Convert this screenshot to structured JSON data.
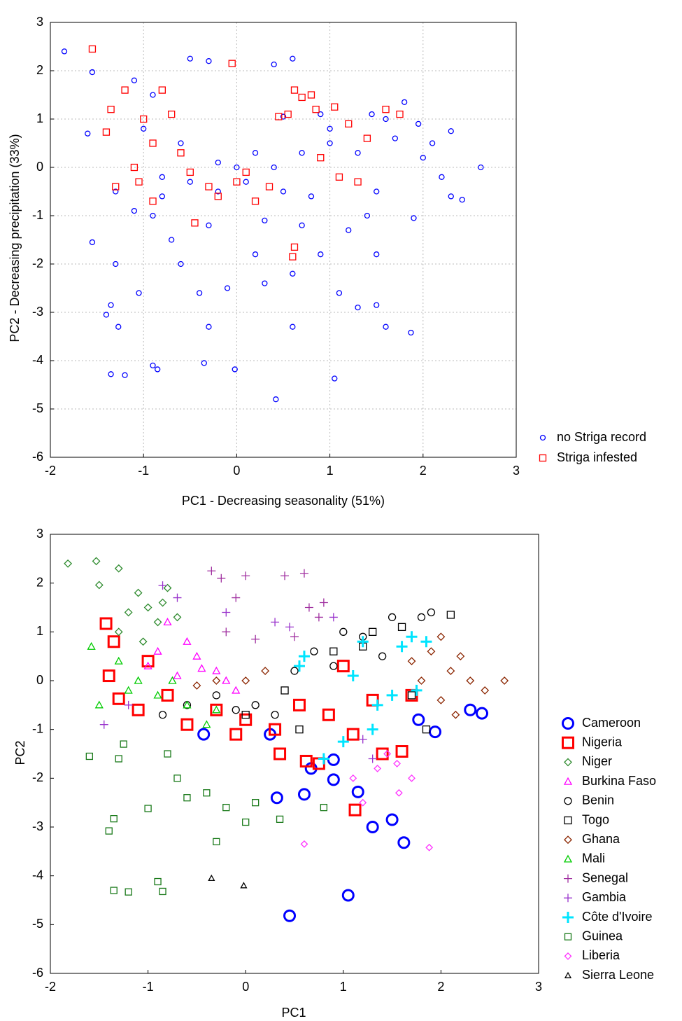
{
  "chart_data": [
    {
      "type": "scatter",
      "x_label": "PC1 - Decreasing seasonality (51%)",
      "y_label": "PC2 - Decreasing precipitation (33%)",
      "xlim": [
        -2,
        3
      ],
      "ylim": [
        -6,
        3
      ],
      "xticks": [
        -2,
        -1,
        0,
        1,
        2,
        3
      ],
      "yticks": [
        -6,
        -5,
        -4,
        -3,
        -2,
        -1,
        0,
        1,
        2,
        3
      ],
      "grid": true,
      "legend": "outside lower right",
      "series": [
        {
          "name": "no Striga record",
          "color": "#0000ff",
          "marker": "circle",
          "size": 7,
          "x": [
            -1.85,
            -1.55,
            -1.6,
            -1.55,
            -1.4,
            -1.35,
            -1.2,
            -0.9,
            -0.85,
            -0.35,
            -0.02,
            0.42,
            1.05,
            -1.27,
            -1.05,
            -0.3,
            0.6,
            1.3,
            1.5,
            1.6,
            1.87,
            2.3,
            2.42,
            2.62,
            2.3,
            1.95,
            1.8,
            1.45,
            1.0,
            0.7,
            0.4,
            0.1,
            -0.2,
            -0.5,
            -0.8,
            -1.1,
            -1.3,
            -1.0,
            -1.1,
            -0.9,
            -0.5,
            -0.3,
            0.4,
            0.6,
            0.9,
            0.5,
            -0.7,
            -0.6,
            -0.4,
            -0.1,
            0.2,
            0.3,
            0.6,
            0.9,
            1.1,
            1.5,
            1.9,
            1.2,
            1.5,
            2.0,
            2.1,
            1.7,
            1.3,
            0.8,
            0.3,
            -0.3,
            -0.9,
            -1.3,
            -1.35,
            -0.8,
            0.0,
            0.5,
            1.0,
            2.2,
            1.6,
            -0.6,
            -0.2,
            0.2,
            0.7,
            1.4
          ],
          "values": [
            2.4,
            1.97,
            0.7,
            -1.55,
            -3.05,
            -4.28,
            -4.3,
            -4.1,
            -4.18,
            -4.05,
            -4.18,
            -4.8,
            -4.37,
            -3.3,
            -2.6,
            -3.3,
            -3.3,
            -2.9,
            -2.85,
            -3.3,
            -3.42,
            -0.6,
            -0.67,
            0,
            0.75,
            0.9,
            1.35,
            1.1,
            0.5,
            0.3,
            0,
            -0.3,
            -0.5,
            -0.3,
            -0.2,
            -0.9,
            -0.5,
            0.8,
            1.8,
            1.5,
            2.25,
            2.2,
            2.13,
            2.25,
            1.1,
            1.05,
            -1.5,
            -2.0,
            -2.6,
            -2.5,
            -1.8,
            -2.4,
            -2.2,
            -1.8,
            -2.6,
            -1.8,
            -1.05,
            -1.3,
            -0.5,
            0.2,
            0.5,
            0.6,
            0.3,
            -0.6,
            -1.1,
            -1.2,
            -1.0,
            -2.0,
            -2.85,
            -0.6,
            0.0,
            -0.5,
            0.8,
            -0.2,
            1.0,
            0.5,
            0.1,
            0.3,
            -1.2,
            -1.0
          ]
        },
        {
          "name": "Striga infested",
          "color": "#ff0000",
          "marker": "square",
          "size": 9,
          "x": [
            -1.55,
            -1.4,
            -1.35,
            -1.3,
            -1.2,
            -1.1,
            -1.0,
            -0.9,
            -0.8,
            -0.7,
            -0.6,
            -0.5,
            -0.3,
            -0.2,
            0.0,
            -0.05,
            0.1,
            0.2,
            0.35,
            0.45,
            0.55,
            0.62,
            0.7,
            0.8,
            0.85,
            0.62,
            0.6,
            1.05,
            1.2,
            1.4,
            1.6,
            1.75,
            1.3,
            -0.9,
            -1.05,
            -0.45,
            0.9,
            1.1
          ],
          "values": [
            2.45,
            0.73,
            1.2,
            -0.4,
            1.6,
            0.0,
            1.0,
            0.5,
            1.6,
            1.1,
            0.3,
            -0.1,
            -0.4,
            -0.6,
            -0.3,
            2.15,
            -0.1,
            -0.7,
            -0.4,
            1.05,
            1.1,
            1.6,
            1.45,
            1.5,
            1.2,
            -1.65,
            -1.85,
            1.25,
            0.9,
            0.6,
            1.2,
            1.1,
            -0.3,
            -0.7,
            -0.3,
            -1.15,
            0.2,
            -0.2
          ]
        }
      ]
    },
    {
      "type": "scatter",
      "x_label": "PC1",
      "y_label": "PC2",
      "xlim": [
        -2,
        3
      ],
      "ylim": [
        -6,
        3
      ],
      "xticks": [
        -2,
        -1,
        0,
        1,
        2,
        3
      ],
      "yticks": [
        -6,
        -5,
        -4,
        -3,
        -2,
        -1,
        0,
        1,
        2,
        3
      ],
      "grid": false,
      "legend": "outside lower right",
      "series": [
        {
          "name": "Cameroon",
          "color": "#0000ff",
          "marker": "circle",
          "size": 15,
          "x": [
            0.45,
            1.05,
            1.62,
            1.3,
            1.5,
            1.15,
            0.9,
            0.32,
            0.6,
            0.67,
            0.9,
            1.77,
            1.94,
            2.3,
            2.42,
            -0.43,
            0.25
          ],
          "values": [
            -4.82,
            -4.4,
            -3.32,
            -3.0,
            -2.85,
            -2.28,
            -2.03,
            -2.4,
            -2.33,
            -1.8,
            -1.62,
            -0.8,
            -1.05,
            -0.6,
            -0.67,
            -1.1,
            -1.1
          ]
        },
        {
          "name": "Nigeria",
          "color": "#ff0000",
          "marker": "square",
          "size": 15,
          "x": [
            -1.43,
            -1.35,
            -1.4,
            -1.3,
            -1.1,
            -1.0,
            -0.8,
            -0.6,
            -0.3,
            -0.1,
            0.0,
            0.3,
            0.35,
            0.55,
            0.62,
            0.85,
            1.0,
            1.1,
            1.12,
            1.3,
            1.4,
            1.6,
            1.7,
            0.75
          ],
          "values": [
            1.17,
            0.8,
            0.1,
            -0.37,
            -0.6,
            0.4,
            -0.3,
            -0.9,
            -0.6,
            -1.1,
            -0.8,
            -1.0,
            -1.5,
            -0.5,
            -1.65,
            -0.7,
            0.3,
            -1.1,
            -2.65,
            -0.4,
            -1.5,
            -1.45,
            -0.3,
            -1.7
          ]
        },
        {
          "name": "Niger",
          "color": "#2e8b2e",
          "marker": "diamond",
          "size": 10,
          "x": [
            -1.82,
            -1.53,
            -1.5,
            -1.3,
            -1.2,
            -1.1,
            -1.0,
            -0.9,
            -0.8,
            -0.7,
            -1.3,
            -1.05,
            -0.85
          ],
          "values": [
            2.4,
            2.45,
            1.96,
            2.3,
            1.4,
            1.8,
            1.5,
            1.2,
            1.9,
            1.3,
            1.0,
            0.8,
            1.6
          ]
        },
        {
          "name": "Burkina Faso",
          "color": "#ff00ff",
          "marker": "triangle",
          "size": 10,
          "x": [
            -1.0,
            -0.8,
            -0.6,
            -0.5,
            -0.3,
            -0.2,
            -0.1,
            -0.7,
            -0.9,
            -0.45
          ],
          "values": [
            0.3,
            1.2,
            0.8,
            0.5,
            0.2,
            0.0,
            -0.2,
            0.1,
            0.6,
            0.25
          ]
        },
        {
          "name": "Benin",
          "color": "#000000",
          "marker": "circle",
          "size": 10,
          "x": [
            -0.85,
            -0.6,
            -0.3,
            -0.1,
            0.1,
            0.3,
            0.5,
            0.7,
            1.0,
            1.2,
            1.5,
            1.8,
            1.9,
            1.4,
            0.9
          ],
          "values": [
            -0.7,
            -0.5,
            -0.3,
            -0.6,
            -0.5,
            -0.7,
            0.2,
            0.6,
            1.0,
            0.9,
            1.3,
            1.3,
            1.4,
            0.5,
            0.3
          ]
        },
        {
          "name": "Togo",
          "color": "#000000",
          "marker": "square",
          "size": 10,
          "x": [
            0.55,
            0.4,
            0.9,
            1.3,
            1.6,
            2.1,
            1.85,
            1.7,
            1.2,
            0.0
          ],
          "values": [
            -1.0,
            -0.2,
            0.6,
            1.0,
            1.1,
            1.35,
            -1.0,
            -0.3,
            0.7,
            -0.7
          ]
        },
        {
          "name": "Ghana",
          "color": "#8b2500",
          "marker": "diamond",
          "size": 10,
          "x": [
            0.0,
            0.2,
            -0.3,
            -0.5,
            1.7,
            1.9,
            2.0,
            2.1,
            2.2,
            2.3,
            2.45,
            2.65,
            2.0,
            2.15,
            1.8
          ],
          "values": [
            0.0,
            0.2,
            0.0,
            -0.1,
            0.4,
            0.6,
            0.9,
            0.2,
            0.5,
            0.0,
            -0.2,
            0.0,
            -0.4,
            -0.7,
            0.0
          ]
        },
        {
          "name": "Mali",
          "color": "#00cc00",
          "marker": "triangle",
          "size": 10,
          "x": [
            -1.58,
            -1.5,
            -1.3,
            -1.1,
            -0.9,
            -0.6,
            -0.4,
            -0.3,
            -1.2,
            -0.75
          ],
          "values": [
            0.7,
            -0.5,
            0.4,
            0.0,
            -0.3,
            -0.5,
            -0.9,
            -0.6,
            -0.2,
            0.0
          ]
        },
        {
          "name": "Senegal",
          "color": "#a030a0",
          "marker": "plus",
          "size": 12,
          "x": [
            -0.35,
            -0.25,
            -0.1,
            0.0,
            0.4,
            0.6,
            0.65,
            0.75,
            -0.2,
            0.1,
            0.5,
            0.8
          ],
          "values": [
            2.25,
            2.1,
            1.7,
            2.15,
            2.15,
            2.2,
            1.5,
            1.3,
            1.0,
            0.85,
            0.9,
            1.6
          ]
        },
        {
          "name": "Gambia",
          "color": "#9933cc",
          "marker": "plus",
          "size": 12,
          "x": [
            -1.45,
            -1.2,
            -0.85,
            -0.7,
            -0.2,
            0.3,
            0.45,
            0.9,
            1.2,
            1.3
          ],
          "values": [
            -0.9,
            -0.5,
            1.95,
            1.7,
            1.4,
            1.2,
            1.1,
            1.3,
            -1.2,
            -1.6
          ]
        },
        {
          "name": "Côte d'Ivoire",
          "color": "#00e5ff",
          "marker": "plus",
          "size": 16,
          "x": [
            0.55,
            0.6,
            0.8,
            1.0,
            1.1,
            1.2,
            1.35,
            1.5,
            1.6,
            1.7,
            1.85,
            1.75,
            1.3
          ],
          "values": [
            0.3,
            0.5,
            -1.6,
            -1.25,
            0.1,
            0.8,
            -0.5,
            -0.3,
            0.7,
            0.9,
            0.8,
            -0.2,
            -1.0
          ]
        },
        {
          "name": "Guinea",
          "color": "#1a7a1a",
          "marker": "square",
          "size": 9,
          "x": [
            -1.6,
            -1.4,
            -1.35,
            -1.35,
            -1.2,
            -1.25,
            -1.0,
            -0.9,
            -0.85,
            -0.8,
            -0.7,
            -0.6,
            -0.4,
            -0.3,
            -0.2,
            0.0,
            0.1,
            0.35,
            0.8,
            -1.3
          ],
          "values": [
            -1.55,
            -3.08,
            -4.3,
            -2.83,
            -4.33,
            -1.3,
            -2.62,
            -4.12,
            -4.32,
            -1.5,
            -2.0,
            -2.4,
            -2.3,
            -3.3,
            -2.6,
            -2.9,
            -2.5,
            -2.84,
            -2.6,
            -1.6
          ]
        },
        {
          "name": "Liberia",
          "color": "#ff33ff",
          "marker": "diamond",
          "size": 9,
          "x": [
            0.6,
            1.88,
            1.45,
            1.35,
            1.1,
            1.55,
            1.7,
            1.57,
            1.2
          ],
          "values": [
            -3.35,
            -3.42,
            -1.5,
            -1.8,
            -2.0,
            -1.7,
            -2.0,
            -2.3,
            -2.5
          ]
        },
        {
          "name": "Sierra Leone",
          "color": "#000000",
          "marker": "triangle",
          "size": 8,
          "x": [
            -0.35,
            -0.02
          ],
          "values": [
            -4.05,
            -4.2
          ]
        }
      ]
    }
  ]
}
